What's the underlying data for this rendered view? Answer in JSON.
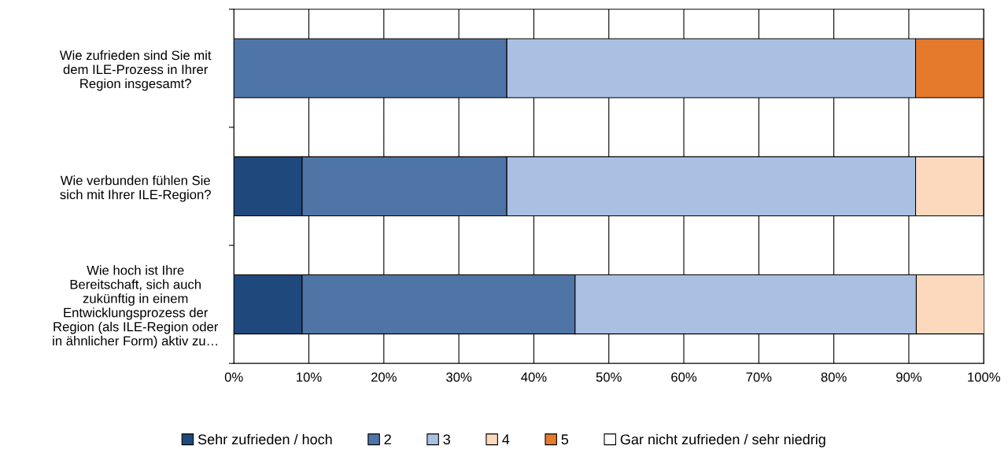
{
  "chart_data": {
    "type": "bar",
    "orientation": "horizontal",
    "stacked": true,
    "categories": [
      "Wie zufrieden sind Sie mit\ndem ILE-Prozess in Ihrer\nRegion insgesamt?",
      "Wie verbunden fühlen Sie\nsich mit Ihrer ILE-Region?",
      "Wie hoch ist Ihre\nBereitschaft, sich auch\nzukünftig in einem\nEntwicklungsprozess der\nRegion (als ILE-Region oder\nin ähnlicher Form) aktiv zu…"
    ],
    "series": [
      {
        "name": "Sehr zufrieden / hoch",
        "color": "#1f497d",
        "values": [
          0,
          9.1,
          9.1
        ]
      },
      {
        "name": "2",
        "color": "#4f74a6",
        "values": [
          36.4,
          27.3,
          36.4
        ]
      },
      {
        "name": "3",
        "color": "#a9c0e2",
        "values": [
          54.5,
          54.5,
          45.5
        ]
      },
      {
        "name": "4",
        "color": "#fcd9bd",
        "values": [
          0,
          9.1,
          9.1
        ]
      },
      {
        "name": "5",
        "color": "#e57a2c",
        "values": [
          9.1,
          0,
          0
        ]
      },
      {
        "name": "Gar nicht zufrieden / sehr niedrig",
        "color": "#ffffff",
        "values": [
          0,
          0,
          0
        ]
      }
    ],
    "xlim": [
      0,
      100
    ],
    "xticks": [
      {
        "value": 0,
        "label": "0%"
      },
      {
        "value": 10,
        "label": "10%"
      },
      {
        "value": 20,
        "label": "20%"
      },
      {
        "value": 30,
        "label": "30%"
      },
      {
        "value": 40,
        "label": "40%"
      },
      {
        "value": 50,
        "label": "50%"
      },
      {
        "value": 60,
        "label": "60%"
      },
      {
        "value": 70,
        "label": "70%"
      },
      {
        "value": 80,
        "label": "80%"
      },
      {
        "value": 90,
        "label": "90%"
      },
      {
        "value": 100,
        "label": "100%"
      }
    ],
    "grid": "x",
    "legend": "bottom"
  }
}
